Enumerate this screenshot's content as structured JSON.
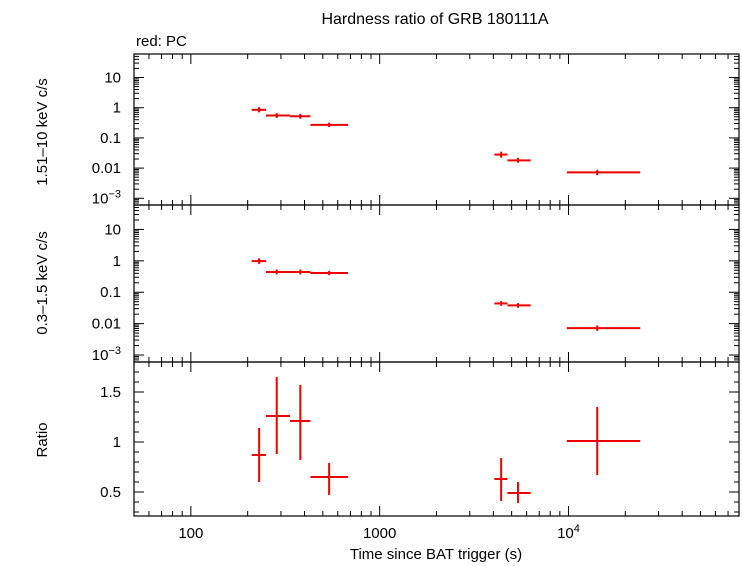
{
  "chart_data": {
    "type": "scatter",
    "title": "Hardness ratio of GRB 180111A",
    "subtitle": "red: PC",
    "xlabel": "Time since BAT trigger (s)",
    "xscale": "log",
    "xlim": [
      50,
      80000
    ],
    "x_tick_labels": [
      {
        "value": 100,
        "label": "100"
      },
      {
        "value": 1000,
        "label": "1000"
      },
      {
        "value": 10000,
        "label": "10",
        "exp": "4"
      }
    ],
    "color": "#ee0000",
    "panels": [
      {
        "id": "hard",
        "ylabel": "1.51–10 keV c/s",
        "yscale": "log",
        "ylim": [
          0.0006,
          60
        ],
        "y_tick_labels": [
          {
            "value": 10,
            "label": "10"
          },
          {
            "value": 1,
            "label": "1"
          },
          {
            "value": 0.1,
            "label": "0.1"
          },
          {
            "value": 0.01,
            "label": "0.01"
          },
          {
            "value": 0.001,
            "label": "10",
            "exp": "−3"
          }
        ],
        "points": [
          {
            "x": 230,
            "xlo": 210,
            "xhi": 250,
            "y": 0.85,
            "ylo": 0.7,
            "yhi": 1.05
          },
          {
            "x": 285,
            "xlo": 250,
            "xhi": 335,
            "y": 0.55,
            "ylo": 0.46,
            "yhi": 0.66
          },
          {
            "x": 380,
            "xlo": 335,
            "xhi": 430,
            "y": 0.52,
            "ylo": 0.43,
            "yhi": 0.63
          },
          {
            "x": 540,
            "xlo": 430,
            "xhi": 680,
            "y": 0.27,
            "ylo": 0.23,
            "yhi": 0.32
          },
          {
            "x": 4400,
            "xlo": 4050,
            "xhi": 4750,
            "y": 0.028,
            "ylo": 0.022,
            "yhi": 0.035
          },
          {
            "x": 5400,
            "xlo": 4750,
            "xhi": 6300,
            "y": 0.018,
            "ylo": 0.015,
            "yhi": 0.022
          },
          {
            "x": 14200,
            "xlo": 9800,
            "xhi": 24000,
            "y": 0.0072,
            "ylo": 0.0058,
            "yhi": 0.0088
          }
        ]
      },
      {
        "id": "soft",
        "ylabel": "0.3–1.5 keV c/s",
        "yscale": "log",
        "ylim": [
          0.0006,
          60
        ],
        "y_tick_labels": [
          {
            "value": 10,
            "label": "10"
          },
          {
            "value": 1,
            "label": "1"
          },
          {
            "value": 0.1,
            "label": "0.1"
          },
          {
            "value": 0.01,
            "label": "0.01"
          },
          {
            "value": 0.001,
            "label": "10",
            "exp": "−3"
          }
        ],
        "points": [
          {
            "x": 230,
            "xlo": 210,
            "xhi": 250,
            "y": 0.98,
            "ylo": 0.8,
            "yhi": 1.2
          },
          {
            "x": 285,
            "xlo": 250,
            "xhi": 335,
            "y": 0.44,
            "ylo": 0.37,
            "yhi": 0.53
          },
          {
            "x": 380,
            "xlo": 335,
            "xhi": 430,
            "y": 0.44,
            "ylo": 0.37,
            "yhi": 0.53
          },
          {
            "x": 540,
            "xlo": 430,
            "xhi": 680,
            "y": 0.41,
            "ylo": 0.35,
            "yhi": 0.48
          },
          {
            "x": 4400,
            "xlo": 4050,
            "xhi": 4750,
            "y": 0.044,
            "ylo": 0.037,
            "yhi": 0.052
          },
          {
            "x": 5400,
            "xlo": 4750,
            "xhi": 6300,
            "y": 0.038,
            "ylo": 0.032,
            "yhi": 0.045
          },
          {
            "x": 14200,
            "xlo": 9800,
            "xhi": 24000,
            "y": 0.0072,
            "ylo": 0.0059,
            "yhi": 0.0087
          }
        ]
      },
      {
        "id": "ratio",
        "ylabel": "Ratio",
        "yscale": "linear",
        "ylim": [
          0.26,
          1.8
        ],
        "y_tick_labels": [
          {
            "value": 1.5,
            "label": "1.5"
          },
          {
            "value": 1,
            "label": "1"
          },
          {
            "value": 0.5,
            "label": "0.5"
          }
        ],
        "y_minor_step": 0.1,
        "points": [
          {
            "x": 230,
            "xlo": 210,
            "xhi": 250,
            "y": 0.87,
            "ylo": 0.6,
            "yhi": 1.14
          },
          {
            "x": 285,
            "xlo": 250,
            "xhi": 335,
            "y": 1.26,
            "ylo": 0.88,
            "yhi": 1.65
          },
          {
            "x": 380,
            "xlo": 335,
            "xhi": 430,
            "y": 1.21,
            "ylo": 0.82,
            "yhi": 1.57
          },
          {
            "x": 540,
            "xlo": 430,
            "xhi": 680,
            "y": 0.65,
            "ylo": 0.47,
            "yhi": 0.79
          },
          {
            "x": 4400,
            "xlo": 4050,
            "xhi": 4750,
            "y": 0.63,
            "ylo": 0.41,
            "yhi": 0.84
          },
          {
            "x": 5400,
            "xlo": 4750,
            "xhi": 6300,
            "y": 0.49,
            "ylo": 0.39,
            "yhi": 0.6
          },
          {
            "x": 14200,
            "xlo": 9800,
            "xhi": 24000,
            "y": 1.01,
            "ylo": 0.67,
            "yhi": 1.35
          }
        ]
      }
    ]
  }
}
